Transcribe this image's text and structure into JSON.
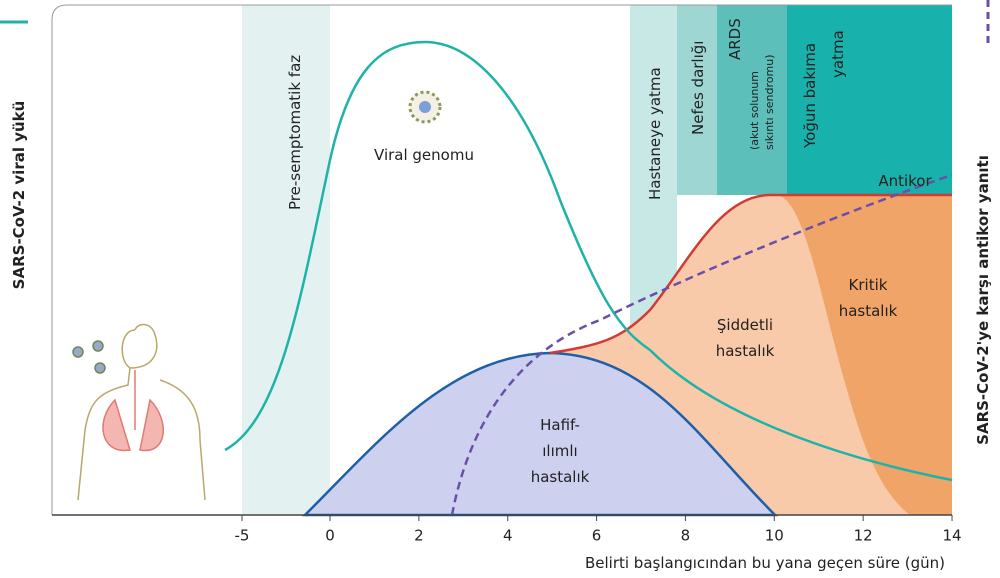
{
  "chart_data": {
    "type": "line",
    "y_label": "SARS-CoV-2 viral yükü",
    "y2_label": "SARS-CoV-2'ye karşı antikor yanıtı",
    "x_label": "Belirti başlangıcından bu yana geçen süre (gün)",
    "xticks": [
      -5,
      0,
      2,
      4,
      6,
      8,
      10,
      12,
      14
    ],
    "phases": {
      "presymptomatic": "Pre-semptomatik faz",
      "hospital": "Hastaneye yatma",
      "breath": "Nefes darlığı",
      "ards": [
        "ARDS",
        "(akut solunum",
        "sıkıntı sendromu)"
      ],
      "icu": [
        "Yoğun bakıma",
        "yatma"
      ]
    },
    "labels": {
      "antibody": "Antikor",
      "viral": "Viral genomu",
      "critical": [
        "Kritik",
        "hastalık"
      ],
      "severe": [
        "Şiddetli",
        "hastalık"
      ],
      "mild": [
        "Hafif-",
        "ılımlı",
        "hastalık"
      ]
    }
  }
}
